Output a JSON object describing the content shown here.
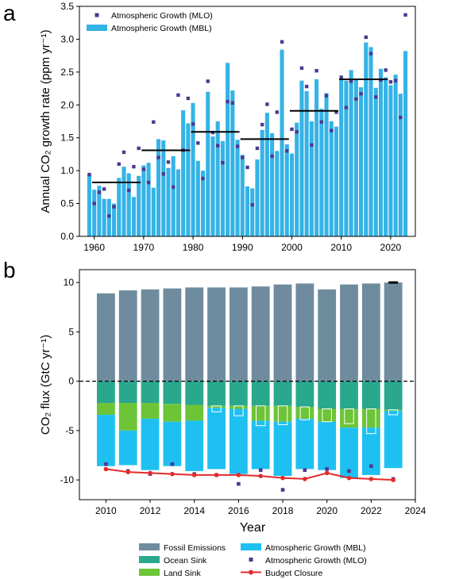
{
  "panel_a": {
    "letter": "a",
    "ylabel": "Annual CO₂ growth rate (ppm yr⁻¹)",
    "legend": {
      "mlo": "Atmospheric Growth (MLO)",
      "mbl": "Atmospheric Growth (MBL)"
    }
  },
  "panel_b": {
    "letter": "b",
    "ylabel": "CO₂ flux (GtC yr⁻¹)",
    "xlabel": "Year",
    "legend": {
      "fossil": "Fossil Emissions",
      "ocean": "Ocean Sink",
      "land": "Land Sink",
      "mbl": "Atmospheric Growth (MBL)",
      "mlo": "Atmospheric Growth (MLO)",
      "closure": "Budget Closure"
    }
  },
  "colors": {
    "mbl": "#35b3e6",
    "mlo": "#4b3a8f",
    "fossil": "#6f8c9f",
    "ocean": "#2aa88e",
    "land": "#6dc437",
    "atm_b": "#1ec0f2",
    "closure": "#e52a2a"
  },
  "chart_data": [
    {
      "type": "bar",
      "xlim": [
        1957,
        2025
      ],
      "ylim": [
        0,
        3.5
      ],
      "xticks": [
        1960,
        1970,
        1980,
        1990,
        2000,
        2010,
        2020
      ],
      "yticks": [
        0.0,
        0.5,
        1.0,
        1.5,
        2.0,
        2.5,
        3.0,
        3.5
      ],
      "x": [
        1959,
        1960,
        1961,
        1962,
        1963,
        1964,
        1965,
        1966,
        1967,
        1968,
        1969,
        1970,
        1971,
        1972,
        1973,
        1974,
        1975,
        1976,
        1977,
        1978,
        1979,
        1980,
        1981,
        1982,
        1983,
        1984,
        1985,
        1986,
        1987,
        1988,
        1989,
        1990,
        1991,
        1992,
        1993,
        1994,
        1995,
        1996,
        1997,
        1998,
        1999,
        2000,
        2001,
        2002,
        2003,
        2004,
        2005,
        2006,
        2007,
        2008,
        2009,
        2010,
        2011,
        2012,
        2013,
        2014,
        2015,
        2016,
        2017,
        2018,
        2019,
        2020,
        2021,
        2022,
        2023
      ],
      "series": [
        {
          "name": "Atmospheric Growth (MBL)",
          "style": "bar",
          "values": [
            0.94,
            0.71,
            0.77,
            0.57,
            0.57,
            0.5,
            0.89,
            1.06,
            0.96,
            0.6,
            0.92,
            1.08,
            1.12,
            0.74,
            1.48,
            1.46,
            1.04,
            1.22,
            1.02,
            1.92,
            1.72,
            2.03,
            1.15,
            1.0,
            2.2,
            1.52,
            1.75,
            1.45,
            2.64,
            2.22,
            1.47,
            1.24,
            0.76,
            0.73,
            1.17,
            1.62,
            1.88,
            1.57,
            1.3,
            2.84,
            1.4,
            1.26,
            1.73,
            2.37,
            2.21,
            1.75,
            2.39,
            1.94,
            2.18,
            1.75,
            1.67,
            2.4,
            2.37,
            2.53,
            2.38,
            2.27,
            2.95,
            2.88,
            2.26,
            2.55,
            2.42,
            2.3,
            2.46,
            2.17,
            2.82
          ]
        },
        {
          "name": "Atmospheric Growth (MLO)",
          "style": "marker",
          "values": [
            0.94,
            0.5,
            0.67,
            0.72,
            0.31,
            0.45,
            1.1,
            1.28,
            0.7,
            1.06,
            1.34,
            1.02,
            0.82,
            1.74,
            1.2,
            0.95,
            1.13,
            0.75,
            2.15,
            1.31,
            2.1,
            1.71,
            1.42,
            0.88,
            2.36,
            1.58,
            1.38,
            1.12,
            2.05,
            2.03,
            1.37,
            1.2,
            1.05,
            0.48,
            1.34,
            1.7,
            2.01,
            1.22,
            1.89,
            2.96,
            1.3,
            1.63,
            1.59,
            2.56,
            2.28,
            1.39,
            2.52,
            1.74,
            2.14,
            1.61,
            1.89,
            2.42,
            1.96,
            2.36,
            2.09,
            2.17,
            3.03,
            2.78,
            2.12,
            2.38,
            2.53,
            2.35,
            2.37,
            1.81,
            3.37
          ]
        },
        {
          "name": "decadal mean",
          "style": "segment",
          "segments": [
            [
              1960,
              1969,
              0.82
            ],
            [
              1970,
              1979,
              1.31
            ],
            [
              1980,
              1989,
              1.59
            ],
            [
              1990,
              1999,
              1.48
            ],
            [
              2000,
              2009,
              1.91
            ],
            [
              2010,
              2019,
              2.39
            ]
          ]
        }
      ]
    },
    {
      "type": "bar",
      "xlabel": "Year",
      "xlim": [
        2008.8,
        2024
      ],
      "ylim": [
        -12,
        11.3
      ],
      "xticks": [
        2010,
        2012,
        2014,
        2016,
        2018,
        2020,
        2022,
        2024
      ],
      "yticks": [
        -10,
        -5,
        0,
        5,
        10
      ],
      "x": [
        2010,
        2011,
        2012,
        2013,
        2014,
        2015,
        2016,
        2017,
        2018,
        2019,
        2020,
        2021,
        2022,
        2023
      ],
      "series": [
        {
          "name": "Fossil Emissions",
          "values": [
            8.9,
            9.2,
            9.3,
            9.4,
            9.5,
            9.5,
            9.5,
            9.6,
            9.8,
            9.9,
            9.3,
            9.8,
            9.9,
            10.0
          ]
        },
        {
          "name": "Ocean Sink",
          "values": [
            -2.2,
            -2.2,
            -2.2,
            -2.3,
            -2.4,
            -2.5,
            -2.5,
            -2.5,
            -2.5,
            -2.6,
            -2.8,
            -2.8,
            -2.8,
            -2.9
          ]
        },
        {
          "name": "Land Sink",
          "values": [
            -1.2,
            -2.8,
            -1.6,
            -1.8,
            -1.6,
            -0.2,
            -0.3,
            -1.5,
            -1.6,
            -1.2,
            -1.3,
            -1.9,
            -1.9,
            -0.1
          ]
        },
        {
          "name": "Land Sink (outlined)",
          "values": [
            null,
            null,
            null,
            null,
            null,
            -0.6,
            -1.0,
            -2.0,
            -1.9,
            -1.3,
            -1.3,
            -1.5,
            -2.5,
            -0.5
          ]
        },
        {
          "name": "Atmospheric Growth (MBL)",
          "values": [
            -5.2,
            -3.5,
            -5.2,
            -4.5,
            -5.1,
            -6.2,
            -6.6,
            -4.9,
            -5.5,
            -5.1,
            -4.9,
            -5.1,
            -4.8,
            -5.8
          ]
        },
        {
          "name": "Atmospheric Growth (MLO)",
          "style": "marker",
          "values": [
            -8.4,
            -9.1,
            -9.4,
            -8.4,
            -9.4,
            -9.5,
            -10.4,
            -9.0,
            -11.0,
            -9.0,
            -8.9,
            -9.1,
            -8.6,
            -9.9
          ]
        },
        {
          "name": "Budget Closure",
          "style": "line",
          "values": [
            -8.9,
            -9.2,
            -9.3,
            -9.4,
            -9.5,
            -9.5,
            -9.5,
            -9.6,
            -9.8,
            -9.9,
            -9.3,
            -9.8,
            -9.9,
            -10.0
          ]
        },
        {
          "name": "2023 marker",
          "style": "segment",
          "value": 10.0
        }
      ]
    }
  ]
}
